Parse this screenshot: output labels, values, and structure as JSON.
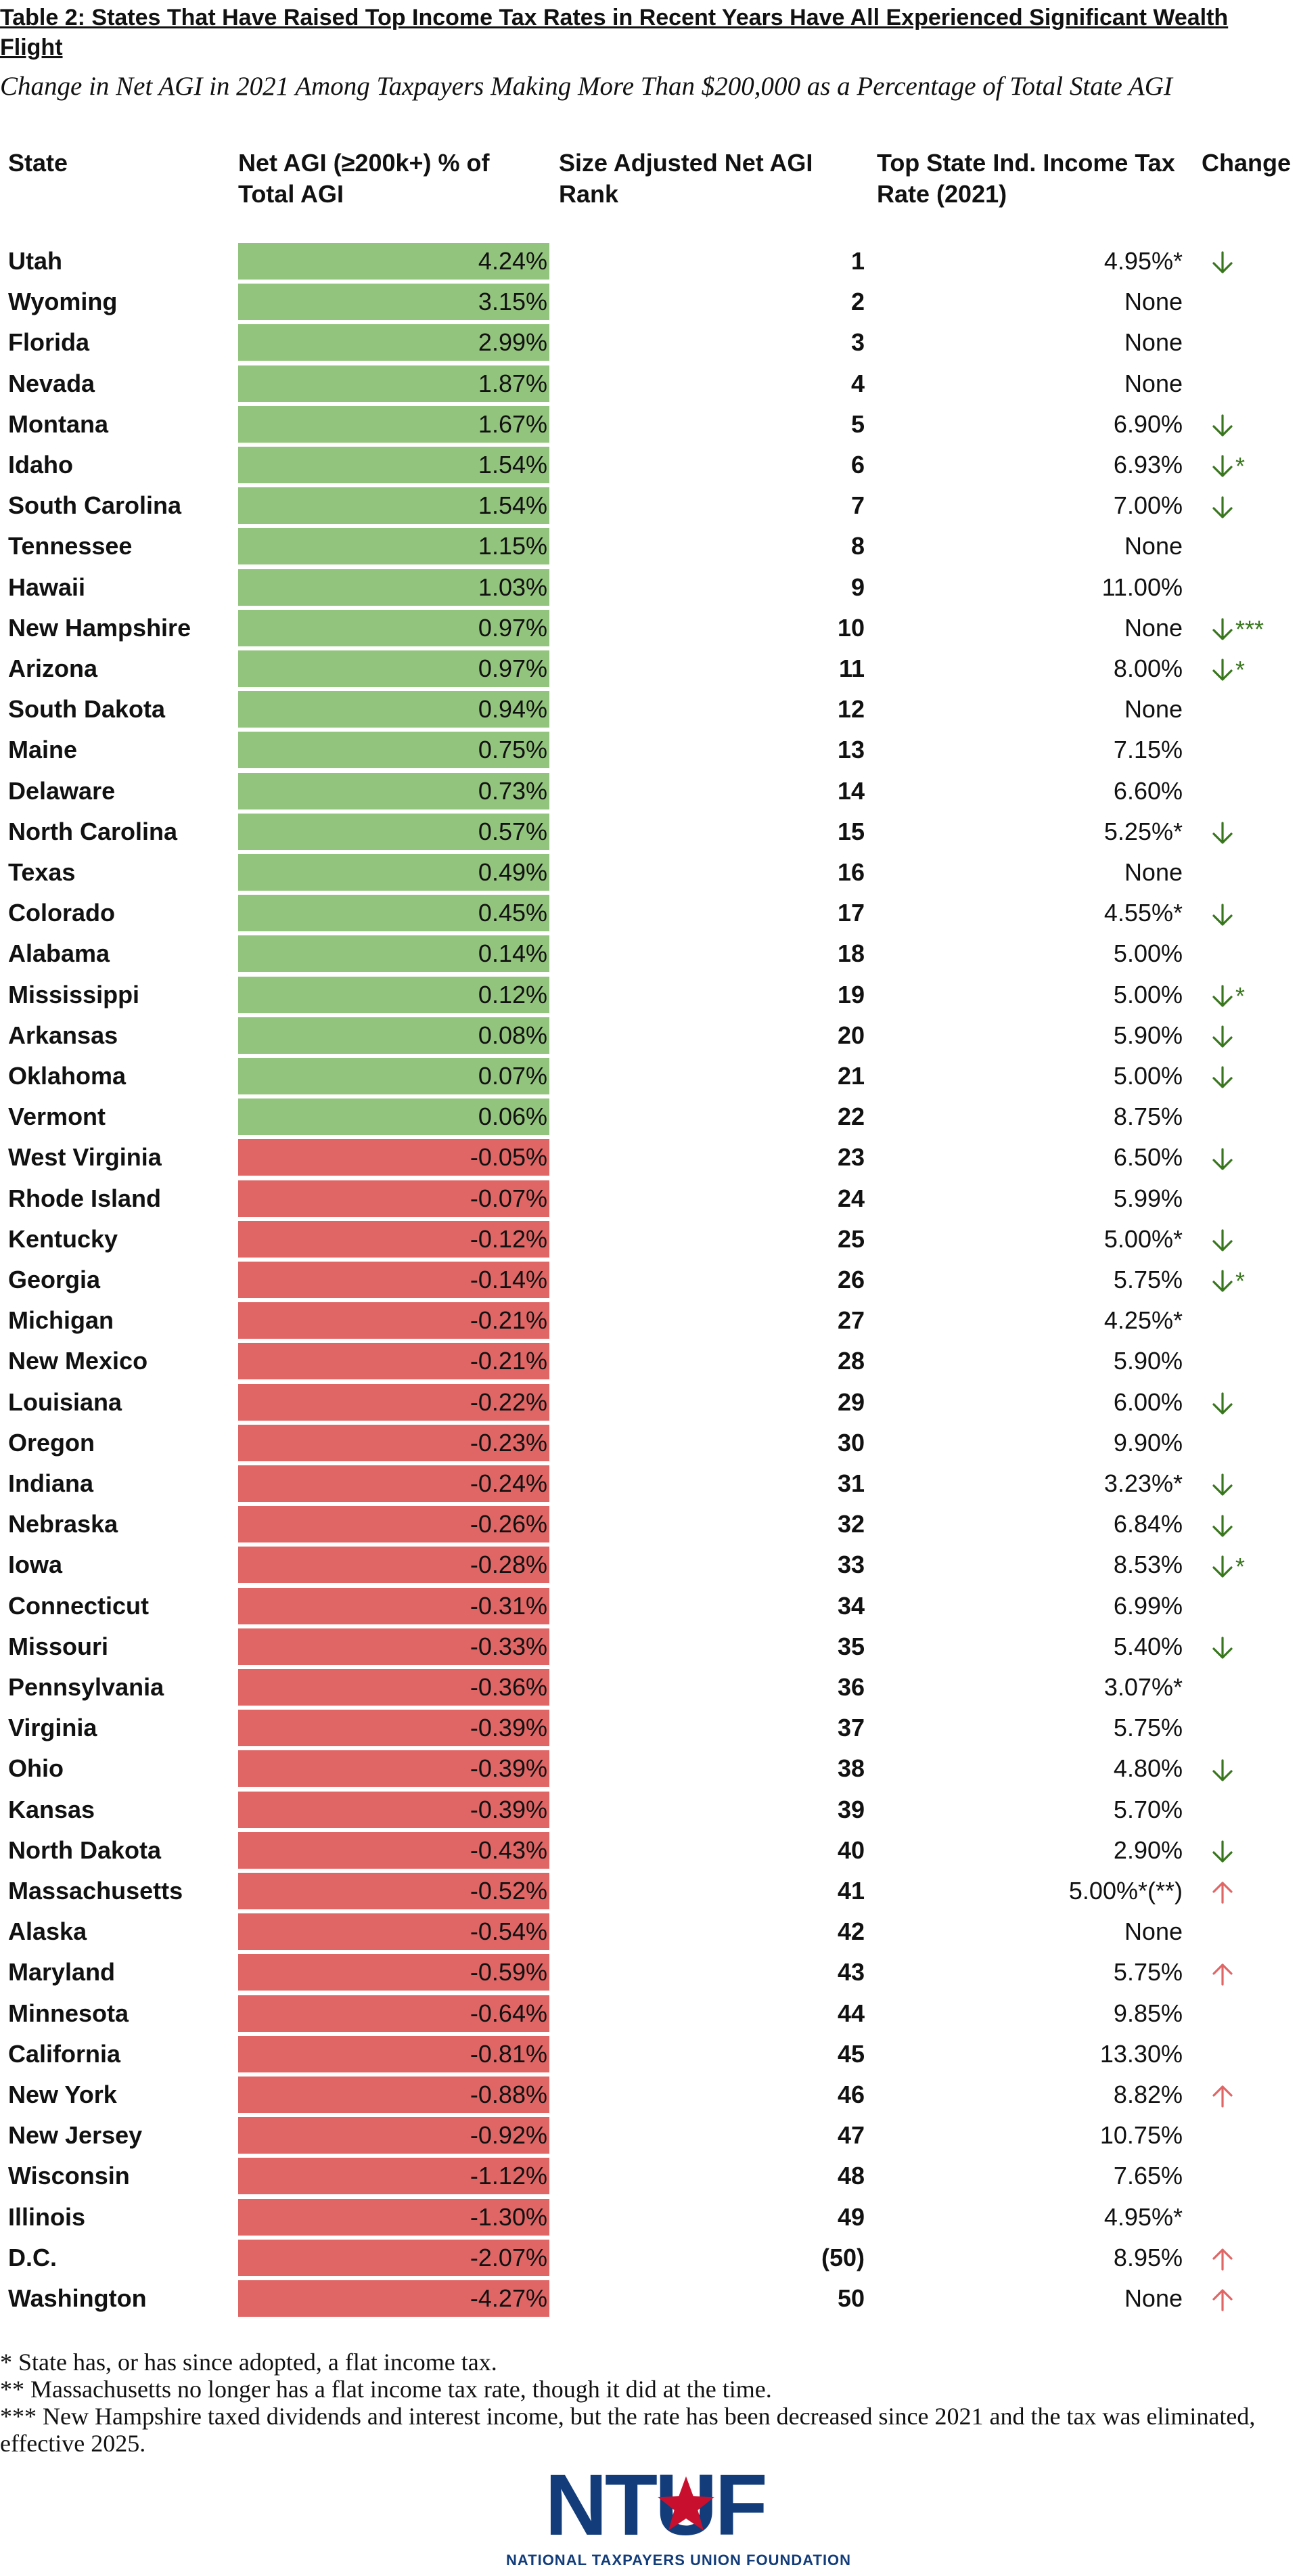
{
  "title": "Table 2: States That Have Raised Top Income Tax Rates in Recent Years Have All Experienced Significant Wealth Flight",
  "subtitle": "Change in Net AGI in 2021 Among Taxpayers Making More Than $200,000 as a Percentage of Total State AGI",
  "headers": {
    "state": "State",
    "agi": "Net AGI (≥200k+) % of Total AGI",
    "rank": "Size Adjusted Net AGI Rank",
    "rate": "Top State Ind. Income Tax Rate (2021)",
    "change": "Change"
  },
  "colors": {
    "positive_bar": "#93c47d",
    "negative_bar": "#e06666",
    "down_arrow": "#38761d",
    "up_arrow": "#e06666",
    "logo": "#123c7a",
    "logo_star": "#c8102e"
  },
  "chart_data": {
    "type": "table",
    "title": "Table 2: States That Have Raised Top Income Tax Rates in Recent Years Have All Experienced Significant Wealth Flight",
    "subtitle": "Change in Net AGI in 2021 Among Taxpayers Making More Than $200,000 as a Percentage of Total State AGI",
    "columns": [
      "State",
      "Net AGI (≥200k+) % of Total AGI",
      "Size Adjusted Net AGI Rank",
      "Top State Ind. Income Tax Rate (2021)",
      "Change"
    ],
    "rows": [
      {
        "state": "Utah",
        "agi": "4.24%",
        "agi_value": 4.24,
        "rank": "1",
        "rate": "4.95%*",
        "change": "down",
        "stars": ""
      },
      {
        "state": "Wyoming",
        "agi": "3.15%",
        "agi_value": 3.15,
        "rank": "2",
        "rate": "None",
        "change": "",
        "stars": ""
      },
      {
        "state": "Florida",
        "agi": "2.99%",
        "agi_value": 2.99,
        "rank": "3",
        "rate": "None",
        "change": "",
        "stars": ""
      },
      {
        "state": "Nevada",
        "agi": "1.87%",
        "agi_value": 1.87,
        "rank": "4",
        "rate": "None",
        "change": "",
        "stars": ""
      },
      {
        "state": "Montana",
        "agi": "1.67%",
        "agi_value": 1.67,
        "rank": "5",
        "rate": "6.90%",
        "change": "down",
        "stars": ""
      },
      {
        "state": "Idaho",
        "agi": "1.54%",
        "agi_value": 1.54,
        "rank": "6",
        "rate": "6.93%",
        "change": "down",
        "stars": "*"
      },
      {
        "state": "South Carolina",
        "agi": "1.54%",
        "agi_value": 1.54,
        "rank": "7",
        "rate": "7.00%",
        "change": "down",
        "stars": ""
      },
      {
        "state": "Tennessee",
        "agi": "1.15%",
        "agi_value": 1.15,
        "rank": "8",
        "rate": "None",
        "change": "",
        "stars": ""
      },
      {
        "state": "Hawaii",
        "agi": "1.03%",
        "agi_value": 1.03,
        "rank": "9",
        "rate": "11.00%",
        "change": "",
        "stars": ""
      },
      {
        "state": "New Hampshire",
        "agi": "0.97%",
        "agi_value": 0.97,
        "rank": "10",
        "rate": "None",
        "change": "down",
        "stars": "***"
      },
      {
        "state": "Arizona",
        "agi": "0.97%",
        "agi_value": 0.97,
        "rank": "11",
        "rate": "8.00%",
        "change": "down",
        "stars": "*"
      },
      {
        "state": "South Dakota",
        "agi": "0.94%",
        "agi_value": 0.94,
        "rank": "12",
        "rate": "None",
        "change": "",
        "stars": ""
      },
      {
        "state": "Maine",
        "agi": "0.75%",
        "agi_value": 0.75,
        "rank": "13",
        "rate": "7.15%",
        "change": "",
        "stars": ""
      },
      {
        "state": "Delaware",
        "agi": "0.73%",
        "agi_value": 0.73,
        "rank": "14",
        "rate": "6.60%",
        "change": "",
        "stars": ""
      },
      {
        "state": "North Carolina",
        "agi": "0.57%",
        "agi_value": 0.57,
        "rank": "15",
        "rate": "5.25%*",
        "change": "down",
        "stars": ""
      },
      {
        "state": "Texas",
        "agi": "0.49%",
        "agi_value": 0.49,
        "rank": "16",
        "rate": "None",
        "change": "",
        "stars": ""
      },
      {
        "state": "Colorado",
        "agi": "0.45%",
        "agi_value": 0.45,
        "rank": "17",
        "rate": "4.55%*",
        "change": "down",
        "stars": ""
      },
      {
        "state": "Alabama",
        "agi": "0.14%",
        "agi_value": 0.14,
        "rank": "18",
        "rate": "5.00%",
        "change": "",
        "stars": ""
      },
      {
        "state": "Mississippi",
        "agi": "0.12%",
        "agi_value": 0.12,
        "rank": "19",
        "rate": "5.00%",
        "change": "down",
        "stars": "*"
      },
      {
        "state": "Arkansas",
        "agi": "0.08%",
        "agi_value": 0.08,
        "rank": "20",
        "rate": "5.90%",
        "change": "down",
        "stars": ""
      },
      {
        "state": "Oklahoma",
        "agi": "0.07%",
        "agi_value": 0.07,
        "rank": "21",
        "rate": "5.00%",
        "change": "down",
        "stars": ""
      },
      {
        "state": "Vermont",
        "agi": "0.06%",
        "agi_value": 0.06,
        "rank": "22",
        "rate": "8.75%",
        "change": "",
        "stars": ""
      },
      {
        "state": "West Virginia",
        "agi": "-0.05%",
        "agi_value": -0.05,
        "rank": "23",
        "rate": "6.50%",
        "change": "down",
        "stars": ""
      },
      {
        "state": "Rhode Island",
        "agi": "-0.07%",
        "agi_value": -0.07,
        "rank": "24",
        "rate": "5.99%",
        "change": "",
        "stars": ""
      },
      {
        "state": "Kentucky",
        "agi": "-0.12%",
        "agi_value": -0.12,
        "rank": "25",
        "rate": "5.00%*",
        "change": "down",
        "stars": ""
      },
      {
        "state": "Georgia",
        "agi": "-0.14%",
        "agi_value": -0.14,
        "rank": "26",
        "rate": "5.75%",
        "change": "down",
        "stars": "*"
      },
      {
        "state": "Michigan",
        "agi": "-0.21%",
        "agi_value": -0.21,
        "rank": "27",
        "rate": "4.25%*",
        "change": "",
        "stars": ""
      },
      {
        "state": "New Mexico",
        "agi": "-0.21%",
        "agi_value": -0.21,
        "rank": "28",
        "rate": "5.90%",
        "change": "",
        "stars": ""
      },
      {
        "state": "Louisiana",
        "agi": "-0.22%",
        "agi_value": -0.22,
        "rank": "29",
        "rate": "6.00%",
        "change": "down",
        "stars": ""
      },
      {
        "state": "Oregon",
        "agi": "-0.23%",
        "agi_value": -0.23,
        "rank": "30",
        "rate": "9.90%",
        "change": "",
        "stars": ""
      },
      {
        "state": "Indiana",
        "agi": "-0.24%",
        "agi_value": -0.24,
        "rank": "31",
        "rate": "3.23%*",
        "change": "down",
        "stars": ""
      },
      {
        "state": "Nebraska",
        "agi": "-0.26%",
        "agi_value": -0.26,
        "rank": "32",
        "rate": "6.84%",
        "change": "down",
        "stars": ""
      },
      {
        "state": "Iowa",
        "agi": "-0.28%",
        "agi_value": -0.28,
        "rank": "33",
        "rate": "8.53%",
        "change": "down",
        "stars": "*"
      },
      {
        "state": "Connecticut",
        "agi": "-0.31%",
        "agi_value": -0.31,
        "rank": "34",
        "rate": "6.99%",
        "change": "",
        "stars": ""
      },
      {
        "state": "Missouri",
        "agi": "-0.33%",
        "agi_value": -0.33,
        "rank": "35",
        "rate": "5.40%",
        "change": "down",
        "stars": ""
      },
      {
        "state": "Pennsylvania",
        "agi": "-0.36%",
        "agi_value": -0.36,
        "rank": "36",
        "rate": "3.07%*",
        "change": "",
        "stars": ""
      },
      {
        "state": "Virginia",
        "agi": "-0.39%",
        "agi_value": -0.39,
        "rank": "37",
        "rate": "5.75%",
        "change": "",
        "stars": ""
      },
      {
        "state": "Ohio",
        "agi": "-0.39%",
        "agi_value": -0.39,
        "rank": "38",
        "rate": "4.80%",
        "change": "down",
        "stars": ""
      },
      {
        "state": "Kansas",
        "agi": "-0.39%",
        "agi_value": -0.39,
        "rank": "39",
        "rate": "5.70%",
        "change": "",
        "stars": ""
      },
      {
        "state": "North Dakota",
        "agi": "-0.43%",
        "agi_value": -0.43,
        "rank": "40",
        "rate": "2.90%",
        "change": "down",
        "stars": ""
      },
      {
        "state": "Massachusetts",
        "agi": "-0.52%",
        "agi_value": -0.52,
        "rank": "41",
        "rate": "5.00%*(**)",
        "change": "up",
        "stars": ""
      },
      {
        "state": "Alaska",
        "agi": "-0.54%",
        "agi_value": -0.54,
        "rank": "42",
        "rate": "None",
        "change": "",
        "stars": ""
      },
      {
        "state": "Maryland",
        "agi": "-0.59%",
        "agi_value": -0.59,
        "rank": "43",
        "rate": "5.75%",
        "change": "up",
        "stars": ""
      },
      {
        "state": "Minnesota",
        "agi": "-0.64%",
        "agi_value": -0.64,
        "rank": "44",
        "rate": "9.85%",
        "change": "",
        "stars": ""
      },
      {
        "state": "California",
        "agi": "-0.81%",
        "agi_value": -0.81,
        "rank": "45",
        "rate": "13.30%",
        "change": "",
        "stars": ""
      },
      {
        "state": "New York",
        "agi": "-0.88%",
        "agi_value": -0.88,
        "rank": "46",
        "rate": "8.82%",
        "change": "up",
        "stars": ""
      },
      {
        "state": "New Jersey",
        "agi": "-0.92%",
        "agi_value": -0.92,
        "rank": "47",
        "rate": "10.75%",
        "change": "",
        "stars": ""
      },
      {
        "state": "Wisconsin",
        "agi": "-1.12%",
        "agi_value": -1.12,
        "rank": "48",
        "rate": "7.65%",
        "change": "",
        "stars": ""
      },
      {
        "state": "Illinois",
        "agi": "-1.30%",
        "agi_value": -1.3,
        "rank": "49",
        "rate": "4.95%*",
        "change": "",
        "stars": ""
      },
      {
        "state": "D.C.",
        "agi": "-2.07%",
        "agi_value": -2.07,
        "rank": "(50)",
        "rate": "8.95%",
        "change": "up",
        "stars": ""
      },
      {
        "state": "Washington",
        "agi": "-4.27%",
        "agi_value": -4.27,
        "rank": "50",
        "rate": "None",
        "change": "up",
        "stars": ""
      }
    ]
  },
  "footnotes": [
    "* State has, or has since adopted, a flat income tax.",
    "** Massachusetts no longer has a flat income tax rate, though it did at the time.",
    "*** New Hampshire taxed dividends and interest income, but the rate has been decreased since 2021 and the tax was eliminated, effective 2025."
  ],
  "logo": {
    "letters": "NTUF",
    "caption": "NATIONAL TAXPAYERS UNION FOUNDATION"
  }
}
